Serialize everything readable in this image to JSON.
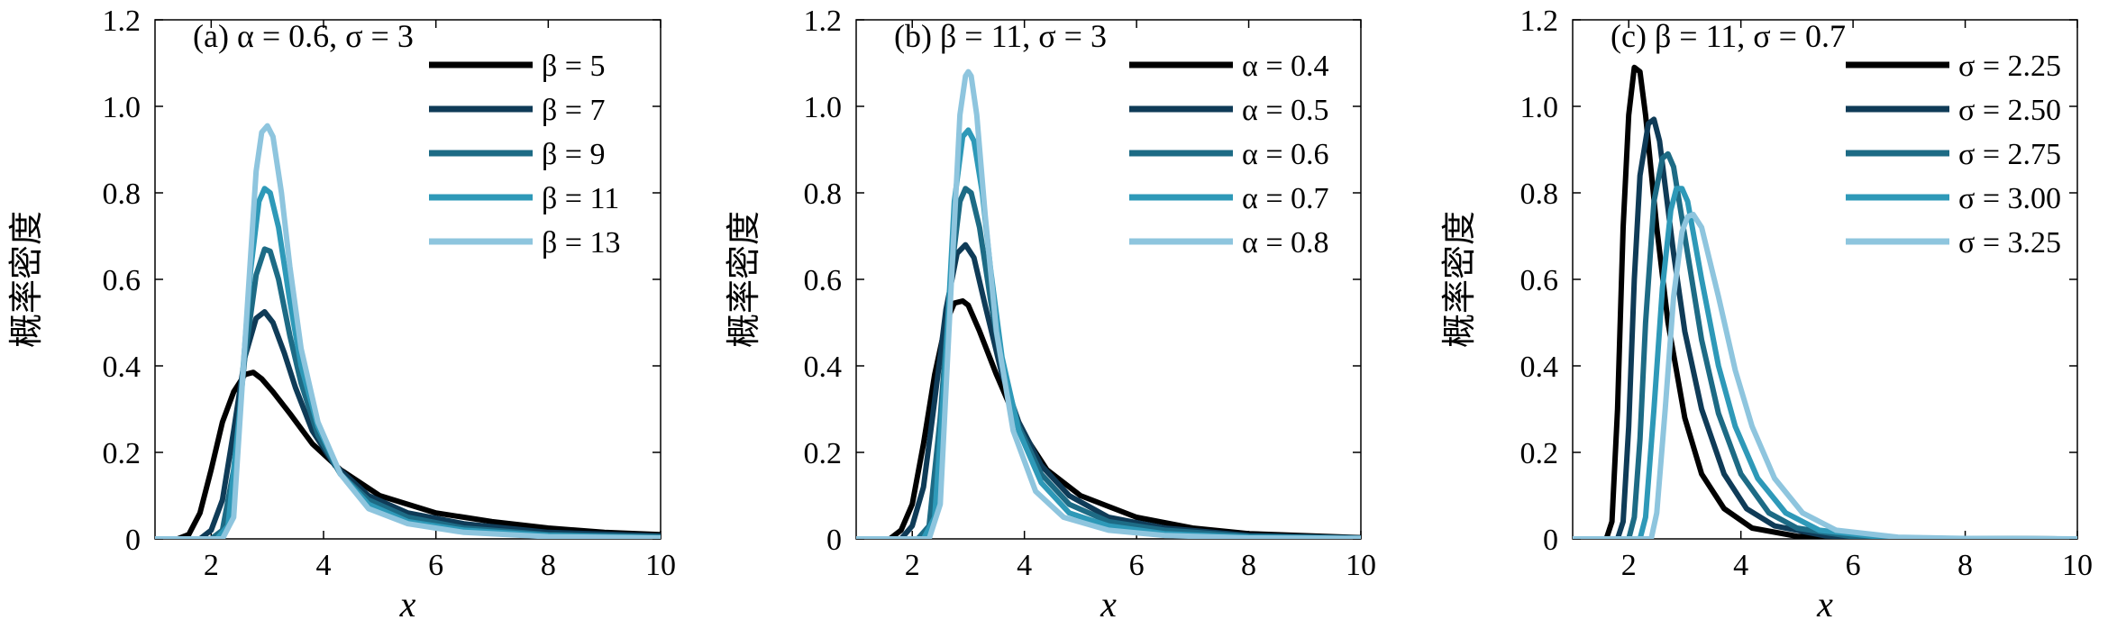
{
  "colors": [
    "#000000",
    "#0f3b57",
    "#1d6b85",
    "#2e99b8",
    "#8ec5de"
  ],
  "chart_data": [
    {
      "type": "line",
      "title": "(a) α = 0.6, σ = 3",
      "xlabel": "x",
      "ylabel": "概率密度",
      "xlim": [
        1,
        10
      ],
      "ylim": [
        0,
        1.2
      ],
      "xticks": [
        2,
        4,
        6,
        8,
        10
      ],
      "yticks": [
        0,
        0.2,
        0.4,
        0.6,
        0.8,
        1.0,
        1.2
      ],
      "ytick_labels": [
        "0",
        "0.2",
        "0.4",
        "0.6",
        "0.8",
        "1.0",
        "1.2"
      ],
      "legend_position": "top-right",
      "series": [
        {
          "name": "β = 5",
          "x": [
            1.0,
            1.4,
            1.6,
            1.8,
            2.0,
            2.2,
            2.4,
            2.6,
            2.75,
            2.9,
            3.1,
            3.4,
            3.8,
            4.3,
            5.0,
            6.0,
            7.0,
            8.0,
            9.0,
            10.0
          ],
          "y": [
            0,
            0,
            0.01,
            0.06,
            0.16,
            0.27,
            0.34,
            0.38,
            0.385,
            0.37,
            0.34,
            0.29,
            0.22,
            0.16,
            0.1,
            0.06,
            0.04,
            0.025,
            0.015,
            0.01
          ]
        },
        {
          "name": "β = 7",
          "x": [
            1.0,
            1.8,
            2.0,
            2.2,
            2.4,
            2.6,
            2.8,
            2.95,
            3.1,
            3.3,
            3.5,
            3.8,
            4.2,
            4.8,
            5.5,
            6.5,
            8.0,
            10.0
          ],
          "y": [
            0,
            0,
            0.02,
            0.09,
            0.25,
            0.42,
            0.51,
            0.525,
            0.5,
            0.43,
            0.35,
            0.25,
            0.17,
            0.1,
            0.06,
            0.035,
            0.015,
            0.007
          ]
        },
        {
          "name": "β = 9",
          "x": [
            1.0,
            2.0,
            2.2,
            2.4,
            2.6,
            2.8,
            2.95,
            3.05,
            3.2,
            3.4,
            3.6,
            3.9,
            4.3,
            4.8,
            5.5,
            6.5,
            8.0,
            10.0
          ],
          "y": [
            0,
            0,
            0.02,
            0.16,
            0.42,
            0.61,
            0.67,
            0.665,
            0.6,
            0.47,
            0.36,
            0.24,
            0.15,
            0.09,
            0.05,
            0.025,
            0.01,
            0.005
          ]
        },
        {
          "name": "β = 11",
          "x": [
            1.0,
            2.1,
            2.3,
            2.5,
            2.7,
            2.85,
            2.95,
            3.05,
            3.2,
            3.4,
            3.6,
            3.9,
            4.3,
            4.8,
            5.5,
            6.5,
            8.0,
            10.0
          ],
          "y": [
            0,
            0,
            0.03,
            0.28,
            0.62,
            0.78,
            0.81,
            0.8,
            0.72,
            0.55,
            0.4,
            0.26,
            0.15,
            0.08,
            0.04,
            0.02,
            0.008,
            0.003
          ]
        },
        {
          "name": "β = 13",
          "x": [
            1.0,
            2.2,
            2.4,
            2.6,
            2.8,
            2.9,
            3.0,
            3.1,
            3.25,
            3.4,
            3.6,
            3.9,
            4.3,
            4.8,
            5.5,
            6.5,
            8.0,
            10.0
          ],
          "y": [
            0,
            0,
            0.05,
            0.45,
            0.85,
            0.94,
            0.955,
            0.93,
            0.8,
            0.63,
            0.44,
            0.27,
            0.15,
            0.07,
            0.035,
            0.015,
            0.005,
            0.002
          ]
        }
      ]
    },
    {
      "type": "line",
      "title": "(b) β = 11, σ = 3",
      "xlabel": "x",
      "ylabel": "概率密度",
      "xlim": [
        1,
        10
      ],
      "ylim": [
        0,
        1.2
      ],
      "xticks": [
        2,
        4,
        6,
        8,
        10
      ],
      "yticks": [
        0,
        0.2,
        0.4,
        0.6,
        0.8,
        1.0,
        1.2
      ],
      "ytick_labels": [
        "0",
        "0.2",
        "0.4",
        "0.6",
        "0.8",
        "1.0",
        "1.2"
      ],
      "legend_position": "top-right",
      "series": [
        {
          "name": "α = 0.4",
          "x": [
            1.0,
            1.6,
            1.8,
            2.0,
            2.2,
            2.4,
            2.6,
            2.75,
            2.9,
            3.0,
            3.2,
            3.5,
            3.9,
            4.4,
            5.0,
            6.0,
            7.0,
            8.0,
            10.0
          ],
          "y": [
            0,
            0,
            0.02,
            0.08,
            0.22,
            0.38,
            0.5,
            0.545,
            0.55,
            0.54,
            0.48,
            0.38,
            0.26,
            0.16,
            0.1,
            0.05,
            0.025,
            0.012,
            0.003
          ]
        },
        {
          "name": "α = 0.5",
          "x": [
            1.0,
            1.8,
            2.0,
            2.2,
            2.4,
            2.6,
            2.8,
            2.95,
            3.1,
            3.3,
            3.6,
            3.9,
            4.3,
            4.8,
            5.5,
            6.5,
            8.0,
            10.0
          ],
          "y": [
            0,
            0,
            0.03,
            0.12,
            0.32,
            0.53,
            0.66,
            0.68,
            0.65,
            0.54,
            0.38,
            0.27,
            0.17,
            0.1,
            0.05,
            0.025,
            0.008,
            0.002
          ]
        },
        {
          "name": "α = 0.6",
          "x": [
            1.0,
            2.1,
            2.3,
            2.5,
            2.7,
            2.85,
            2.95,
            3.05,
            3.2,
            3.4,
            3.6,
            3.9,
            4.3,
            4.8,
            5.5,
            6.5,
            8.0,
            10.0
          ],
          "y": [
            0,
            0,
            0.03,
            0.28,
            0.62,
            0.78,
            0.81,
            0.8,
            0.72,
            0.55,
            0.4,
            0.26,
            0.15,
            0.08,
            0.04,
            0.02,
            0.006,
            0.002
          ]
        },
        {
          "name": "α = 0.7",
          "x": [
            1.0,
            2.2,
            2.4,
            2.6,
            2.75,
            2.9,
            3.0,
            3.1,
            3.25,
            3.4,
            3.6,
            3.9,
            4.3,
            4.8,
            5.5,
            6.5,
            8.0,
            10.0
          ],
          "y": [
            0,
            0,
            0.05,
            0.42,
            0.78,
            0.93,
            0.945,
            0.92,
            0.8,
            0.62,
            0.42,
            0.25,
            0.13,
            0.06,
            0.03,
            0.012,
            0.004,
            0.001
          ]
        },
        {
          "name": "α = 0.8",
          "x": [
            1.0,
            2.3,
            2.5,
            2.7,
            2.85,
            2.95,
            3.0,
            3.05,
            3.15,
            3.3,
            3.5,
            3.8,
            4.2,
            4.7,
            5.5,
            6.5,
            8.0,
            10.0
          ],
          "y": [
            0,
            0,
            0.08,
            0.6,
            0.98,
            1.07,
            1.08,
            1.07,
            0.98,
            0.75,
            0.48,
            0.25,
            0.11,
            0.05,
            0.02,
            0.008,
            0.002,
            0.001
          ]
        }
      ]
    },
    {
      "type": "line",
      "title": "(c) β = 11, σ = 0.7",
      "xlabel": "x",
      "ylabel": "概率密度",
      "xlim": [
        1,
        10
      ],
      "ylim": [
        0,
        1.2
      ],
      "xticks": [
        2,
        4,
        6,
        8,
        10
      ],
      "yticks": [
        0,
        0.2,
        0.4,
        0.6,
        0.8,
        1.0,
        1.2
      ],
      "ytick_labels": [
        "0",
        "0.2",
        "0.4",
        "0.6",
        "0.8",
        "1.0",
        "1.2"
      ],
      "legend_position": "top-right",
      "series": [
        {
          "name": "σ = 2.25",
          "x": [
            1.0,
            1.6,
            1.7,
            1.8,
            1.9,
            2.0,
            2.1,
            2.2,
            2.3,
            2.5,
            2.7,
            3.0,
            3.3,
            3.7,
            4.2,
            5.0,
            6.0,
            10.0
          ],
          "y": [
            0,
            0,
            0.04,
            0.3,
            0.72,
            0.98,
            1.09,
            1.08,
            0.98,
            0.72,
            0.5,
            0.28,
            0.15,
            0.07,
            0.025,
            0.006,
            0.001,
            0
          ]
        },
        {
          "name": "σ = 2.50",
          "x": [
            1.0,
            1.8,
            1.9,
            2.0,
            2.1,
            2.2,
            2.35,
            2.45,
            2.55,
            2.8,
            3.0,
            3.3,
            3.7,
            4.1,
            4.6,
            5.5,
            6.5,
            10.0
          ],
          "y": [
            0,
            0,
            0.04,
            0.26,
            0.6,
            0.84,
            0.96,
            0.97,
            0.92,
            0.66,
            0.48,
            0.3,
            0.15,
            0.07,
            0.03,
            0.007,
            0.001,
            0
          ]
        },
        {
          "name": "σ = 2.75",
          "x": [
            1.0,
            2.0,
            2.1,
            2.2,
            2.3,
            2.45,
            2.6,
            2.7,
            2.8,
            3.0,
            3.3,
            3.6,
            4.0,
            4.5,
            5.0,
            6.0,
            7.0,
            10.0
          ],
          "y": [
            0,
            0,
            0.05,
            0.23,
            0.5,
            0.78,
            0.88,
            0.89,
            0.86,
            0.7,
            0.46,
            0.29,
            0.15,
            0.06,
            0.025,
            0.005,
            0.001,
            0
          ]
        },
        {
          "name": "σ = 3.00",
          "x": [
            1.0,
            2.2,
            2.3,
            2.45,
            2.6,
            2.75,
            2.85,
            2.95,
            3.05,
            3.3,
            3.6,
            3.9,
            4.3,
            4.8,
            5.4,
            6.5,
            7.5,
            10.0
          ],
          "y": [
            0,
            0,
            0.05,
            0.3,
            0.58,
            0.76,
            0.81,
            0.81,
            0.78,
            0.6,
            0.4,
            0.26,
            0.14,
            0.06,
            0.02,
            0.004,
            0.001,
            0
          ]
        },
        {
          "name": "σ = 3.25",
          "x": [
            1.0,
            2.4,
            2.5,
            2.65,
            2.8,
            2.95,
            3.05,
            3.15,
            3.3,
            3.6,
            3.9,
            4.2,
            4.6,
            5.1,
            5.7,
            6.8,
            8.0,
            10.0
          ],
          "y": [
            0,
            0,
            0.06,
            0.3,
            0.56,
            0.71,
            0.745,
            0.75,
            0.72,
            0.56,
            0.39,
            0.26,
            0.14,
            0.06,
            0.02,
            0.004,
            0.001,
            0
          ]
        }
      ]
    }
  ]
}
